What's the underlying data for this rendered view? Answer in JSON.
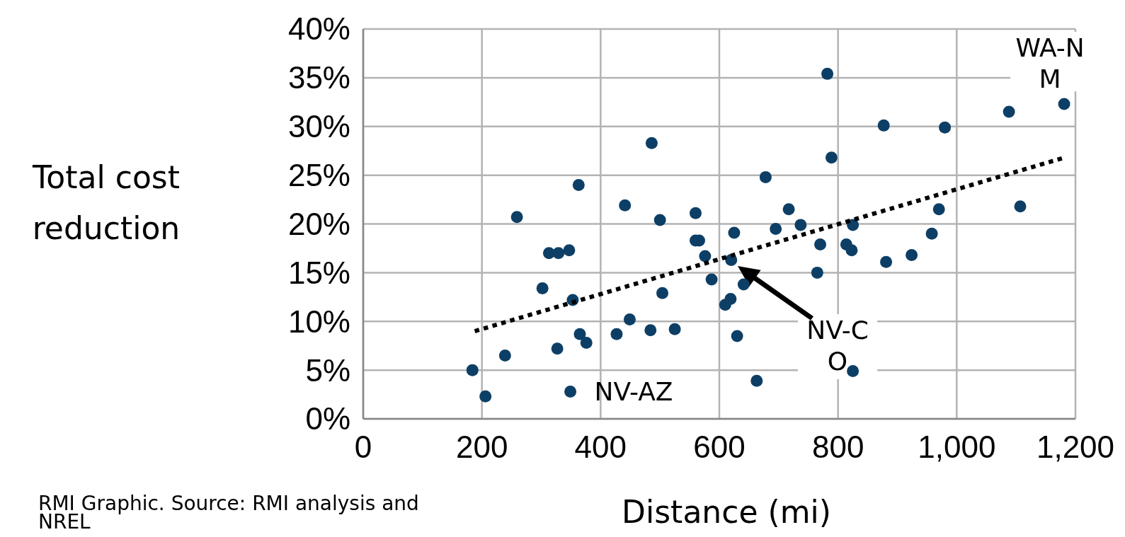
{
  "chart_data": {
    "type": "scatter",
    "xlabel": "Distance (mi)",
    "ylabel": "Total cost reduction",
    "xlim": [
      0,
      1200
    ],
    "ylim": [
      0,
      40
    ],
    "xticks": [
      0,
      200,
      400,
      600,
      800,
      {
        "value": 1000,
        "label": "1,000"
      },
      {
        "value": 1200,
        "label": "1,200"
      }
    ],
    "yticks": [
      {
        "value": 0,
        "label": "0%"
      },
      {
        "value": 5,
        "label": "5%"
      },
      {
        "value": 10,
        "label": "10%"
      },
      {
        "value": 15,
        "label": "15%"
      },
      {
        "value": 20,
        "label": "20%"
      },
      {
        "value": 25,
        "label": "25%"
      },
      {
        "value": 30,
        "label": "30%"
      },
      {
        "value": 35,
        "label": "35%"
      },
      {
        "value": 40,
        "label": "40%"
      }
    ],
    "grid": true,
    "marker": "circle",
    "series": [
      {
        "color": "#0d3f66",
        "x": [
          184,
          206,
          239,
          259,
          302,
          313,
          329,
          347,
          327,
          353,
          363,
          365,
          376,
          349,
          427,
          441,
          449,
          486,
          484,
          500,
          504,
          525,
          560,
          560,
          566,
          576,
          587,
          610,
          619,
          625,
          620,
          630,
          641,
          663,
          678,
          695,
          717,
          737,
          765,
          770,
          782,
          789,
          814,
          823,
          825,
          825,
          877,
          881,
          924,
          958,
          970,
          980,
          1088,
          1107,
          1181
        ],
        "values": [
          5.0,
          2.3,
          6.5,
          20.7,
          13.4,
          17.0,
          17.0,
          17.3,
          7.2,
          12.2,
          24.0,
          8.7,
          7.8,
          2.8,
          8.7,
          21.9,
          10.2,
          28.3,
          9.1,
          20.4,
          12.9,
          9.2,
          21.1,
          18.3,
          18.3,
          16.7,
          14.3,
          11.7,
          12.3,
          19.1,
          16.3,
          8.5,
          13.8,
          3.9,
          24.8,
          19.5,
          21.5,
          19.9,
          15.0,
          17.9,
          35.4,
          26.8,
          17.9,
          17.3,
          19.9,
          4.9,
          30.1,
          16.1,
          16.8,
          19.0,
          21.5,
          29.9,
          31.5,
          21.8,
          32.3
        ]
      },
      {
        "type": "line",
        "color": "#000000",
        "line_style": "dotted",
        "marker": "none",
        "x": [
          188,
          1181
        ],
        "values": [
          9.0,
          26.8
        ]
      }
    ],
    "annotations": [
      {
        "text": "NV-AZ",
        "x": 349,
        "y": 2.8
      },
      "NV-CO",
      {
        "text": "WA-NM",
        "x": 1181,
        "y": 32.3
      },
      "RMI Graphic. Source: RMI analysis and NREL"
    ]
  }
}
